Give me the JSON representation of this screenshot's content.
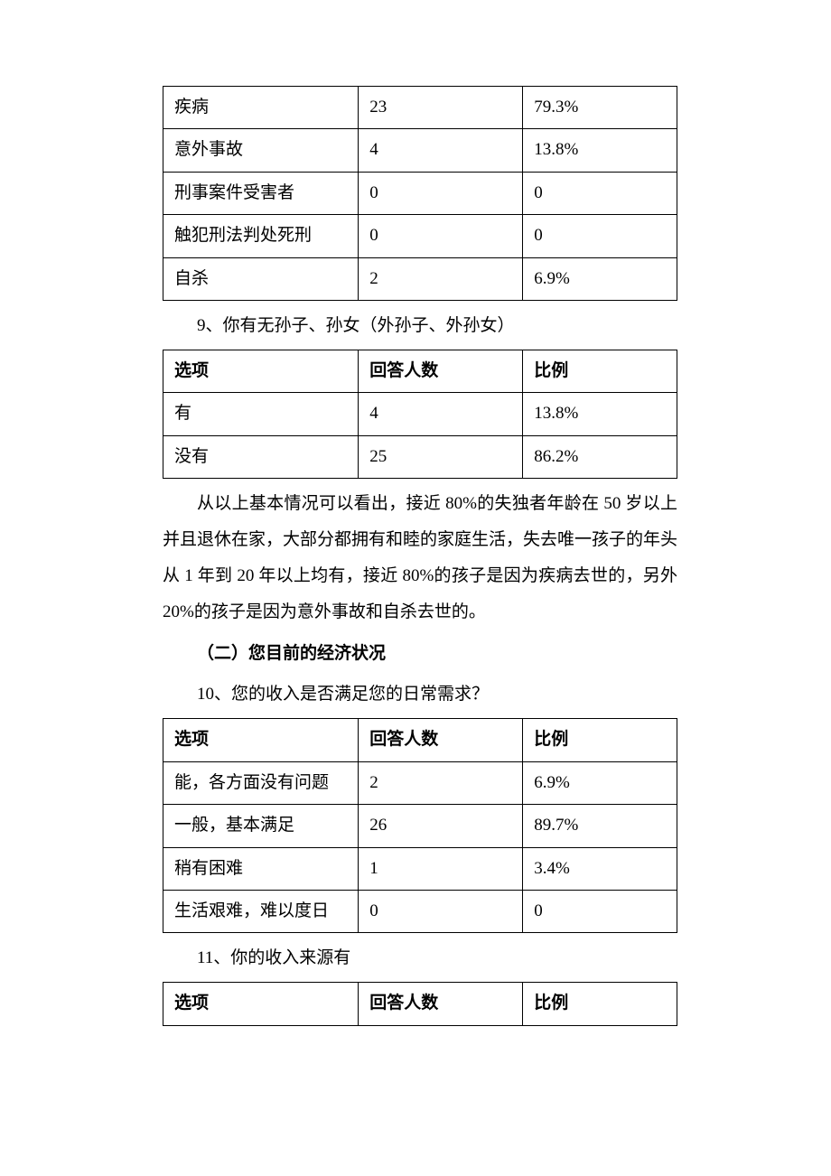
{
  "table1": {
    "rows": [
      {
        "option": "疾病",
        "count": "23",
        "ratio": "79.3%"
      },
      {
        "option": "意外事故",
        "count": "4",
        "ratio": "13.8%"
      },
      {
        "option": "刑事案件受害者",
        "count": "0",
        "ratio": "0"
      },
      {
        "option": "触犯刑法判处死刑",
        "count": "0",
        "ratio": "0"
      },
      {
        "option": "自杀",
        "count": "2",
        "ratio": "6.9%"
      }
    ]
  },
  "question9": "9、你有无孙子、孙女（外孙子、外孙女）",
  "table2": {
    "headers": {
      "col1": "选项",
      "col2": "回答人数",
      "col3": "比例"
    },
    "rows": [
      {
        "option": "有",
        "count": "4",
        "ratio": "13.8%"
      },
      {
        "option": "没有",
        "count": "25",
        "ratio": "86.2%"
      }
    ]
  },
  "summary": "从以上基本情况可以看出，接近 80%的失独者年龄在 50 岁以上并且退休在家，大部分都拥有和睦的家庭生活，失去唯一孩子的年头从 1 年到 20 年以上均有，接近 80%的孩子是因为疾病去世的，另外20%的孩子是因为意外事故和自杀去世的。",
  "sectionHeading": "（二）您目前的经济状况",
  "question10": "10、您的收入是否满足您的日常需求？",
  "table3": {
    "headers": {
      "col1": "选项",
      "col2": "回答人数",
      "col3": "比例"
    },
    "rows": [
      {
        "option": "能，各方面没有问题",
        "count": "2",
        "ratio": "6.9%"
      },
      {
        "option": "一般，基本满足",
        "count": "26",
        "ratio": "89.7%"
      },
      {
        "option": "稍有困难",
        "count": "1",
        "ratio": "3.4%"
      },
      {
        "option": "生活艰难，难以度日",
        "count": "0",
        "ratio": "0"
      }
    ]
  },
  "question11": "11、你的收入来源有",
  "table4": {
    "headers": {
      "col1": "选项",
      "col2": "回答人数",
      "col3": "比例"
    }
  }
}
